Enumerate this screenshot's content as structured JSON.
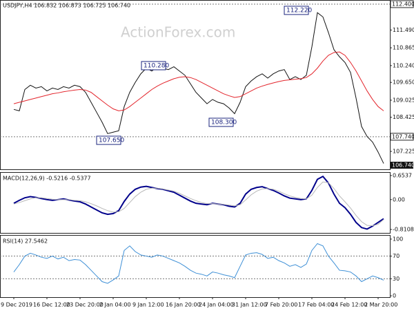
{
  "chart_data": [
    {
      "type": "line",
      "title": "USDJPY,H4  106.832 106.873 106.725 106.740",
      "watermark": "ActionForex.com",
      "ylim": [
        106.595,
        112.545
      ],
      "yticks": [
        {
          "value": 111.49,
          "label": "111.490"
        },
        {
          "value": 110.865,
          "label": "110.865"
        },
        {
          "value": 110.24,
          "label": "110.240"
        },
        {
          "value": 109.65,
          "label": "109.650"
        },
        {
          "value": 109.025,
          "label": "109.025"
        },
        {
          "value": 108.425,
          "label": "108.425"
        },
        {
          "value": 107.225,
          "label": "107.225"
        }
      ],
      "levels": [
        {
          "value": 112.4,
          "label": "112.400"
        },
        {
          "value": 107.74,
          "label": "107.740"
        }
      ],
      "last": {
        "value": 106.74,
        "label": "106.740"
      },
      "annotations": [
        "112.220",
        "110.280",
        "108.300",
        "107.650"
      ],
      "series": [
        {
          "name": "Close",
          "color": "#111111",
          "values": [
            108.7,
            108.65,
            109.4,
            109.55,
            109.45,
            109.5,
            109.35,
            109.45,
            109.4,
            109.5,
            109.45,
            109.55,
            109.5,
            109.3,
            108.95,
            108.6,
            108.25,
            107.85,
            107.9,
            107.95,
            108.8,
            109.3,
            109.65,
            109.95,
            110.15,
            110.05,
            110.2,
            110.15,
            110.1,
            110.2,
            110.05,
            109.9,
            109.6,
            109.3,
            109.1,
            108.9,
            109.05,
            108.95,
            108.9,
            108.75,
            108.55,
            108.95,
            109.5,
            109.7,
            109.85,
            109.95,
            109.8,
            109.95,
            110.05,
            110.1,
            109.75,
            109.85,
            109.75,
            109.9,
            110.9,
            112.1,
            111.95,
            111.4,
            110.8,
            110.55,
            110.35,
            110.0,
            109.1,
            108.1,
            107.75,
            107.55,
            107.2,
            106.8
          ]
        },
        {
          "name": "MA",
          "color": "#e3242b",
          "values": [
            108.9,
            108.95,
            109.0,
            109.05,
            109.1,
            109.15,
            109.2,
            109.25,
            109.28,
            109.32,
            109.35,
            109.38,
            109.4,
            109.38,
            109.3,
            109.15,
            109.0,
            108.85,
            108.72,
            108.65,
            108.68,
            108.8,
            108.95,
            109.1,
            109.25,
            109.4,
            109.52,
            109.62,
            109.7,
            109.78,
            109.83,
            109.85,
            109.82,
            109.75,
            109.65,
            109.55,
            109.45,
            109.35,
            109.25,
            109.18,
            109.12,
            109.15,
            109.25,
            109.35,
            109.45,
            109.52,
            109.58,
            109.63,
            109.68,
            109.72,
            109.74,
            109.76,
            109.78,
            109.82,
            109.95,
            110.15,
            110.4,
            110.6,
            110.7,
            110.72,
            110.6,
            110.35,
            110.05,
            109.7,
            109.35,
            109.05,
            108.8,
            108.65
          ]
        }
      ]
    },
    {
      "type": "line",
      "title": "MACD(12,26,9) -0.5216 -0.5377",
      "ylim": [
        -0.905,
        0.729
      ],
      "yticks": [
        0.6537,
        {
          "value": 0,
          "label": "0.00"
        },
        -0.8108
      ],
      "series": [
        {
          "name": "MACD",
          "color": "#00008b",
          "values": [
            -0.1,
            -0.02,
            0.05,
            0.08,
            0.06,
            0.03,
            0.0,
            -0.02,
            0.0,
            0.02,
            -0.01,
            -0.04,
            -0.06,
            -0.12,
            -0.2,
            -0.28,
            -0.36,
            -0.4,
            -0.38,
            -0.3,
            -0.05,
            0.15,
            0.28,
            0.34,
            0.36,
            0.33,
            0.3,
            0.28,
            0.24,
            0.2,
            0.12,
            0.04,
            -0.04,
            -0.1,
            -0.12,
            -0.14,
            -0.1,
            -0.12,
            -0.14,
            -0.18,
            -0.2,
            -0.1,
            0.15,
            0.28,
            0.33,
            0.35,
            0.3,
            0.25,
            0.18,
            0.1,
            0.04,
            0.02,
            0.0,
            0.02,
            0.25,
            0.55,
            0.63,
            0.45,
            0.15,
            -0.1,
            -0.22,
            -0.4,
            -0.62,
            -0.76,
            -0.8,
            -0.72,
            -0.62,
            -0.52
          ]
        },
        {
          "name": "Signal",
          "color": "#b8b8b8",
          "values": [
            -0.12,
            -0.08,
            -0.03,
            0.02,
            0.05,
            0.05,
            0.03,
            0.01,
            0.0,
            0.0,
            0.0,
            -0.02,
            -0.03,
            -0.06,
            -0.11,
            -0.17,
            -0.24,
            -0.3,
            -0.34,
            -0.33,
            -0.24,
            -0.08,
            0.08,
            0.2,
            0.28,
            0.31,
            0.31,
            0.29,
            0.26,
            0.23,
            0.17,
            0.1,
            0.03,
            -0.03,
            -0.08,
            -0.11,
            -0.11,
            -0.12,
            -0.13,
            -0.15,
            -0.17,
            -0.14,
            -0.01,
            0.13,
            0.23,
            0.29,
            0.3,
            0.28,
            0.23,
            0.16,
            0.1,
            0.06,
            0.03,
            0.02,
            0.12,
            0.33,
            0.48,
            0.46,
            0.3,
            0.1,
            -0.06,
            -0.23,
            -0.43,
            -0.6,
            -0.7,
            -0.71,
            -0.67,
            -0.54
          ]
        }
      ]
    },
    {
      "type": "line",
      "title": "RSI(14) 27.5462",
      "ylim": [
        -2.4,
        106
      ],
      "yticks": [
        100,
        70,
        30,
        0
      ],
      "levels": [
        70,
        30
      ],
      "categories": [
        "9 Dec 2019",
        null,
        null,
        null,
        null,
        null,
        "16 Dec 12:00",
        null,
        null,
        null,
        null,
        null,
        "23 Dec 20:00",
        null,
        null,
        null,
        null,
        null,
        "2 Jan 04:00",
        null,
        null,
        null,
        null,
        null,
        "9 Jan 12:00",
        null,
        null,
        null,
        null,
        null,
        "16 Jan 20:00",
        null,
        null,
        null,
        null,
        null,
        "24 Jan 04:00",
        null,
        null,
        null,
        null,
        null,
        "31 Jan 12:00",
        null,
        null,
        null,
        null,
        null,
        "7 Feb 20:00",
        null,
        null,
        null,
        null,
        null,
        "17 Feb 04:00",
        null,
        null,
        null,
        null,
        null,
        "24 Feb 12:00",
        null,
        null,
        null,
        null,
        null,
        "2 Mar 20:00",
        null
      ],
      "series": [
        {
          "name": "RSI",
          "color": "#3d8fd6",
          "values": [
            42,
            55,
            70,
            75,
            72,
            68,
            66,
            70,
            65,
            68,
            62,
            64,
            63,
            55,
            45,
            35,
            25,
            22,
            28,
            35,
            80,
            88,
            78,
            72,
            70,
            68,
            72,
            70,
            66,
            62,
            58,
            52,
            45,
            40,
            38,
            35,
            42,
            40,
            37,
            35,
            32,
            52,
            72,
            75,
            76,
            73,
            66,
            68,
            62,
            58,
            52,
            55,
            50,
            56,
            80,
            92,
            88,
            70,
            58,
            45,
            44,
            42,
            35,
            25,
            30,
            35,
            32,
            27.5
          ]
        }
      ]
    }
  ]
}
